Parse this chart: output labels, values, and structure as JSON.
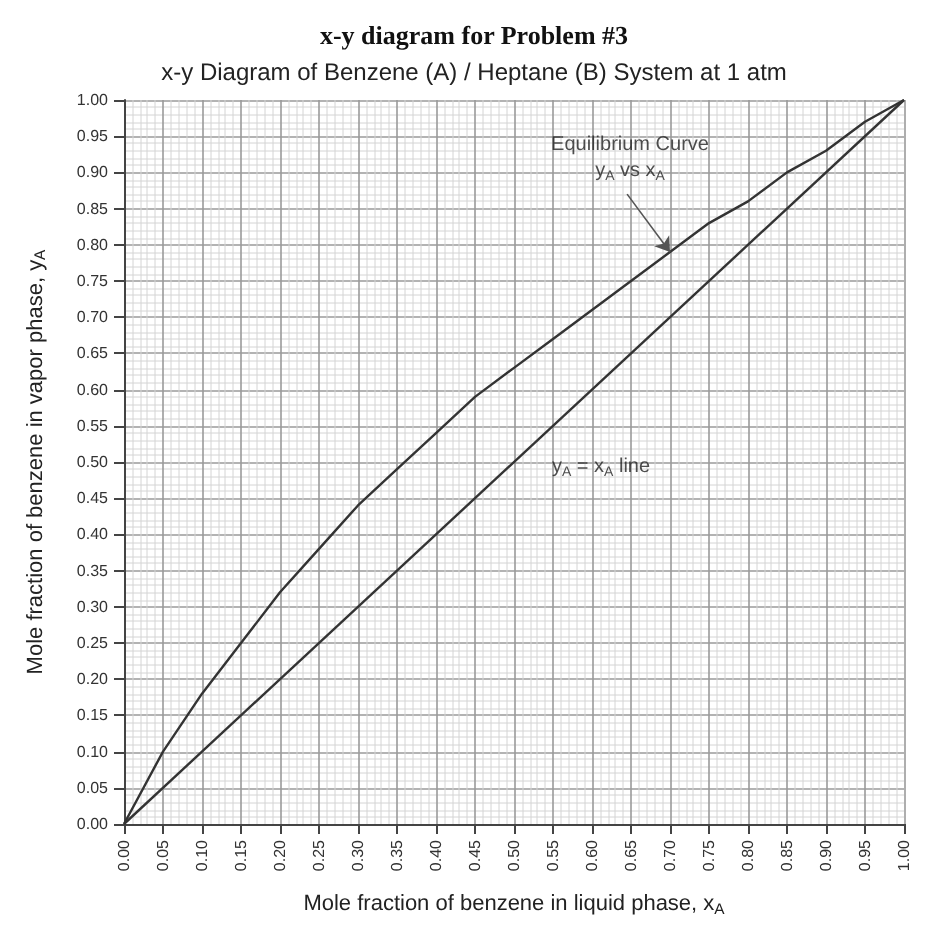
{
  "chart_data": {
    "type": "line",
    "title": "x-y diagram for Problem #3",
    "subtitle": "x-y Diagram of Benzene (A) / Heptane (B) System at 1 atm",
    "xlabel": "Mole fraction of benzene in liquid phase, x$_{A}$",
    "ylabel": "Mole fraction of benzene in vapor phase, y$_{A}$",
    "series": [
      {
        "color": "#333333",
        "x": [
          0,
          0.05,
          0.1,
          0.15,
          0.2,
          0.25,
          0.3,
          0.35,
          0.4,
          0.45,
          0.5,
          0.55,
          0.6,
          0.65,
          0.7,
          0.75,
          0.8,
          0.85,
          0.9,
          0.95,
          1
        ],
        "values": [
          0,
          0.1,
          0.18,
          0.25,
          0.32,
          0.38,
          0.44,
          0.49,
          0.54,
          0.59,
          0.63,
          0.67,
          0.71,
          0.75,
          0.79,
          0.83,
          0.86,
          0.9,
          0.93,
          0.97,
          1
        ]
      },
      {
        "color": "#333333",
        "x": [
          0,
          1
        ],
        "values": [
          0,
          1
        ]
      }
    ],
    "xlim": [
      0,
      1
    ],
    "ylim": [
      0,
      1
    ],
    "xticks": [
      {
        "value": 0,
        "label": "0.00"
      },
      {
        "value": 0.05,
        "label": "0.05"
      },
      {
        "value": 0.1,
        "label": "0.10"
      },
      {
        "value": 0.15,
        "label": "0.15"
      },
      {
        "value": 0.2,
        "label": "0.20"
      },
      {
        "value": 0.25,
        "label": "0.25"
      },
      {
        "value": 0.3,
        "label": "0.30"
      },
      {
        "value": 0.35,
        "label": "0.35"
      },
      {
        "value": 0.4,
        "label": "0.40"
      },
      {
        "value": 0.45,
        "label": "0.45"
      },
      {
        "value": 0.5,
        "label": "0.50"
      },
      {
        "value": 0.55,
        "label": "0.55"
      },
      {
        "value": 0.6,
        "label": "0.60"
      },
      {
        "value": 0.65,
        "label": "0.65"
      },
      {
        "value": 0.7,
        "label": "0.70"
      },
      {
        "value": 0.75,
        "label": "0.75"
      },
      {
        "value": 0.8,
        "label": "0.80"
      },
      {
        "value": 0.85,
        "label": "0.85"
      },
      {
        "value": 0.9,
        "label": "0.90"
      },
      {
        "value": 0.95,
        "label": "0.95"
      },
      {
        "value": 1,
        "label": "1.00"
      }
    ],
    "yticks": [
      {
        "value": 0,
        "label": "0.00"
      },
      {
        "value": 0.05,
        "label": "0.05"
      },
      {
        "value": 0.1,
        "label": "0.10"
      },
      {
        "value": 0.15,
        "label": "0.15"
      },
      {
        "value": 0.2,
        "label": "0.20"
      },
      {
        "value": 0.25,
        "label": "0.25"
      },
      {
        "value": 0.3,
        "label": "0.30"
      },
      {
        "value": 0.35,
        "label": "0.35"
      },
      {
        "value": 0.4,
        "label": "0.40"
      },
      {
        "value": 0.45,
        "label": "0.45"
      },
      {
        "value": 0.5,
        "label": "0.50"
      },
      {
        "value": 0.55,
        "label": "0.55"
      },
      {
        "value": 0.6,
        "label": "0.60"
      },
      {
        "value": 0.65,
        "label": "0.65"
      },
      {
        "value": 0.7,
        "label": "0.70"
      },
      {
        "value": 0.75,
        "label": "0.75"
      },
      {
        "value": 0.8,
        "label": "0.80"
      },
      {
        "value": 0.85,
        "label": "0.85"
      },
      {
        "value": 0.9,
        "label": "0.90"
      },
      {
        "value": 0.95,
        "label": "0.95"
      },
      {
        "value": 1,
        "label": "1.00"
      }
    ],
    "annotations": [
      {
        "text": "Equilibrium Curve\ny$_{A}$ vs x$_{A}$",
        "x": 0.7,
        "y": 0.79
      },
      {
        "text": "y$_{A}$ = x$_{A}$ line",
        "x": 0.55,
        "y": 0.55
      }
    ],
    "grid": true,
    "marker": "none",
    "line_style": "solid"
  }
}
